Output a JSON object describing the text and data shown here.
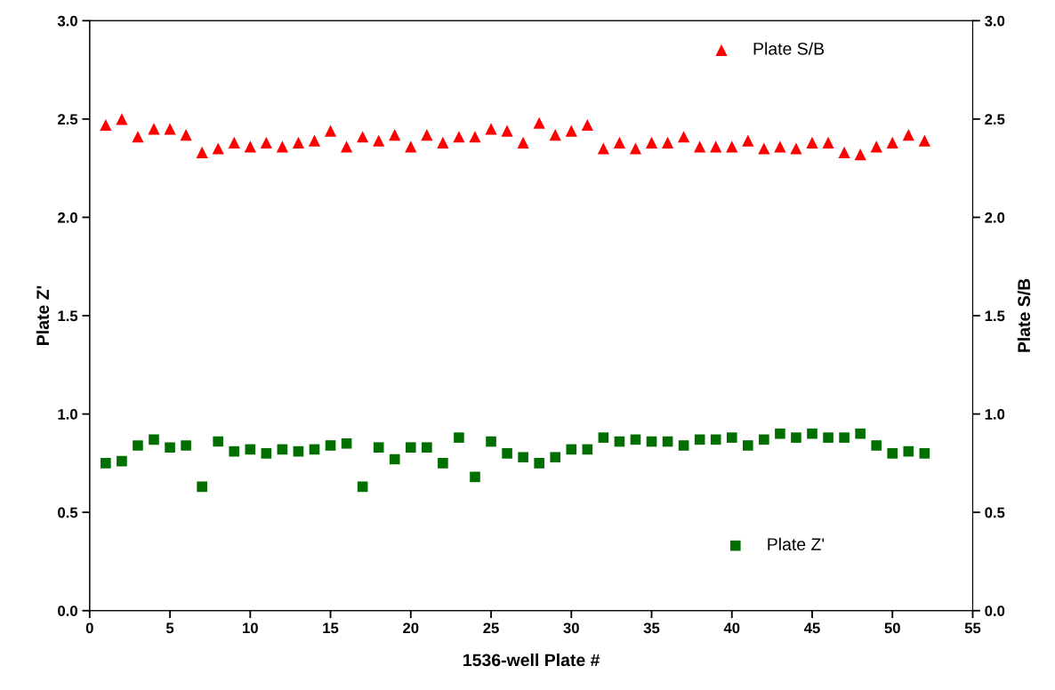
{
  "chart_data": {
    "type": "scatter",
    "xlabel": "1536-well Plate #",
    "ylabel": "Plate Z'",
    "y2label": "Plate S/B",
    "x": [
      1,
      2,
      3,
      4,
      5,
      6,
      7,
      8,
      9,
      10,
      11,
      12,
      13,
      14,
      15,
      16,
      17,
      18,
      19,
      20,
      21,
      22,
      23,
      24,
      25,
      26,
      27,
      28,
      29,
      30,
      31,
      32,
      33,
      34,
      35,
      36,
      37,
      38,
      39,
      40,
      41,
      42,
      43,
      44,
      45,
      46,
      47,
      48,
      49,
      50,
      51,
      52
    ],
    "series": [
      {
        "name": "Plate S/B",
        "color": "#ff0000",
        "marker": "triangle",
        "axis": "y2",
        "values": [
          2.47,
          2.5,
          2.41,
          2.45,
          2.45,
          2.42,
          2.33,
          2.35,
          2.38,
          2.36,
          2.38,
          2.36,
          2.38,
          2.39,
          2.44,
          2.36,
          2.41,
          2.39,
          2.42,
          2.36,
          2.42,
          2.38,
          2.41,
          2.41,
          2.45,
          2.44,
          2.38,
          2.48,
          2.42,
          2.44,
          2.47,
          2.35,
          2.38,
          2.35,
          2.38,
          2.38,
          2.41,
          2.36,
          2.36,
          2.36,
          2.39,
          2.35,
          2.36,
          2.35,
          2.38,
          2.38,
          2.33,
          2.32,
          2.36,
          2.38,
          2.42,
          2.39
        ]
      },
      {
        "name": "Plate Z'",
        "color": "#006f00",
        "marker": "square",
        "values": [
          0.75,
          0.76,
          0.84,
          0.87,
          0.83,
          0.84,
          0.63,
          0.86,
          0.81,
          0.82,
          0.8,
          0.82,
          0.81,
          0.82,
          0.84,
          0.85,
          0.63,
          0.83,
          0.77,
          0.83,
          0.83,
          0.75,
          0.88,
          0.68,
          0.86,
          0.8,
          0.78,
          0.75,
          0.78,
          0.82,
          0.82,
          0.88,
          0.86,
          0.87,
          0.86,
          0.86,
          0.84,
          0.87,
          0.87,
          0.88,
          0.84,
          0.87,
          0.9,
          0.88,
          0.9,
          0.88,
          0.88,
          0.9,
          0.84,
          0.8,
          0.81,
          0.8
        ]
      }
    ],
    "xlim": [
      0,
      55
    ],
    "xticks": [
      0,
      5,
      10,
      15,
      20,
      25,
      30,
      35,
      40,
      45,
      50,
      55
    ],
    "ylim": [
      0,
      3
    ],
    "yticks": [
      {
        "value": 0,
        "label": "0.0"
      },
      {
        "value": 0.5,
        "label": "0.5"
      },
      {
        "value": 1,
        "label": "1.0"
      },
      {
        "value": 1.5,
        "label": "1.5"
      },
      {
        "value": 2,
        "label": "2.0"
      },
      {
        "value": 2.5,
        "label": "2.5"
      },
      {
        "value": 3,
        "label": "3.0"
      }
    ],
    "y2lim": [
      0,
      3
    ],
    "y2ticks": [
      {
        "value": 0,
        "label": "0.0"
      },
      {
        "value": 0.5,
        "label": "0.5"
      },
      {
        "value": 1,
        "label": "1.0"
      },
      {
        "value": 1.5,
        "label": "1.5"
      },
      {
        "value": 2,
        "label": "2.0"
      },
      {
        "value": 2.5,
        "label": "2.5"
      },
      {
        "value": 3,
        "label": "3.0"
      }
    ],
    "grid": false,
    "legend": "right"
  }
}
